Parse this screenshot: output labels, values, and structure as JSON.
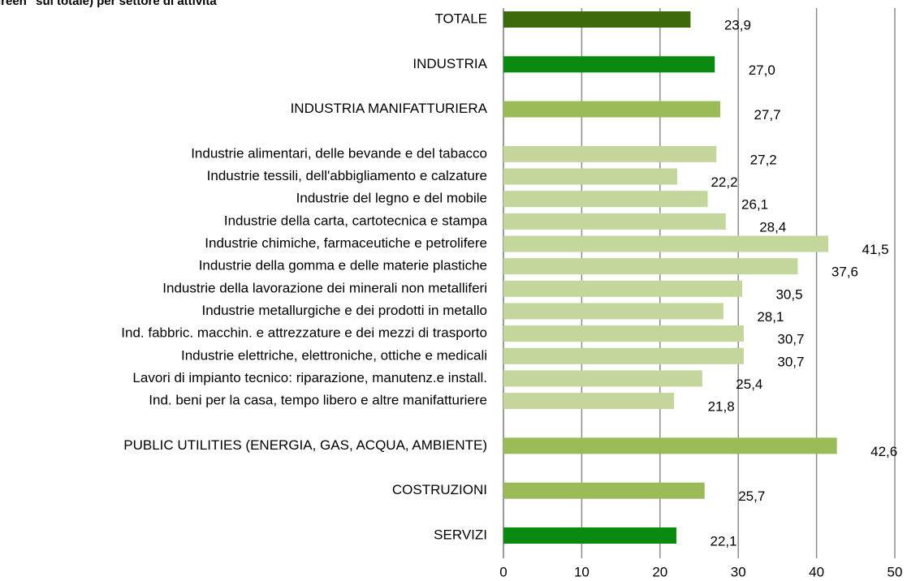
{
  "chart_data": {
    "type": "bar",
    "orientation": "horizontal",
    "title": "green\" sul totale) per settore di attività",
    "categories": [
      "TOTALE",
      null,
      "INDUSTRIA",
      null,
      "INDUSTRIA MANIFATTURIERA",
      null,
      "Industrie alimentari, delle bevande e del tabacco",
      "Industrie tessili, dell'abbigliamento e calzature",
      "Industrie del legno e del mobile",
      "Industrie della carta, cartotecnica e stampa",
      "Industrie chimiche, farmaceutiche e petrolifere",
      "Industrie della gomma e delle materie plastiche",
      "Industrie della lavorazione dei minerali non metalliferi",
      "Industrie metallurgiche e dei prodotti in metallo",
      "Ind. fabbric. macchin. e attrezzature e dei mezzi di trasporto",
      "Industrie elettriche, elettroniche, ottiche e medicali",
      "Lavori di impianto tecnico: riparazione, manutenz.e install.",
      "Ind. beni per la casa, tempo libero e altre manifatturiere",
      null,
      "PUBLIC UTILITIES (ENERGIA, GAS, ACQUA, AMBIENTE)",
      null,
      "COSTRUZIONI",
      null,
      "SERVIZI"
    ],
    "values": [
      23.9,
      null,
      27,
      null,
      27.7,
      null,
      27.2,
      22.2,
      26.1,
      28.4,
      41.5,
      37.6,
      30.5,
      28.1,
      30.7,
      30.7,
      25.4,
      21.8,
      null,
      42.6,
      null,
      25.7,
      null,
      22.1
    ],
    "value_labels": [
      "23,9",
      null,
      "27,0",
      null,
      "27,7",
      null,
      "27,2",
      "22,2",
      "26,1",
      "28,4",
      "41,5",
      "37,6",
      "30,5",
      "28,1",
      "30,7",
      "30,7",
      "25,4",
      "21,8",
      null,
      "42,6",
      null,
      "25,7",
      null,
      "22,1"
    ],
    "colors": [
      "#3d6b0b",
      null,
      "#0b8a12",
      null,
      "#9bbb59",
      null,
      "#c3d69b",
      "#c3d69b",
      "#c3d69b",
      "#c3d69b",
      "#c3d69b",
      "#c3d69b",
      "#c3d69b",
      "#c3d69b",
      "#c3d69b",
      "#c3d69b",
      "#c3d69b",
      "#c3d69b",
      null,
      "#9bbb59",
      null,
      "#9bbb59",
      null,
      "#0b8a12"
    ],
    "xlim": [
      0,
      50
    ],
    "xticks": [
      0,
      10,
      20,
      30,
      40,
      50
    ],
    "grid": true
  }
}
